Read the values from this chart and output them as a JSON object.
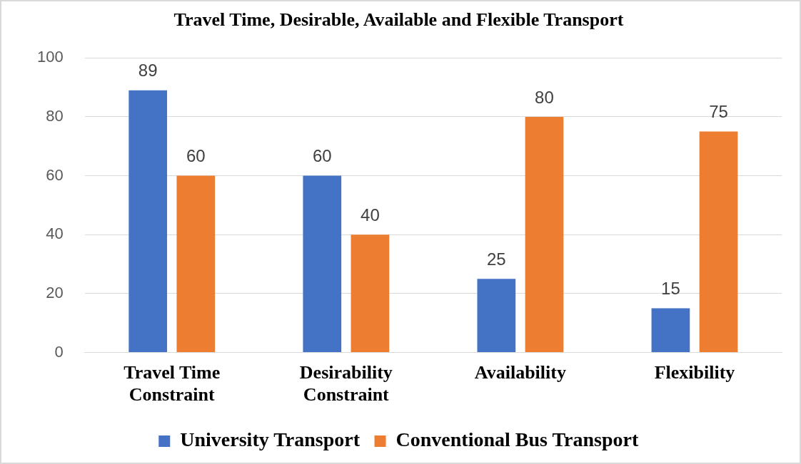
{
  "chart_data": {
    "type": "bar",
    "title": "Travel Time, Desirable, Available and Flexible Transport",
    "categories": [
      "Travel Time Constraint",
      "Desirability Constraint",
      "Availability",
      "Flexibility"
    ],
    "series": [
      {
        "name": "University Transport",
        "color": "#4472c4",
        "values": [
          89,
          60,
          25,
          15
        ]
      },
      {
        "name": "Conventional Bus Transport",
        "color": "#ed7d31",
        "values": [
          60,
          40,
          80,
          75
        ]
      }
    ],
    "ylim": [
      0,
      100
    ],
    "yticks": [
      0,
      20,
      40,
      60,
      80,
      100
    ],
    "grid": "y",
    "legend": "bottom",
    "data_labels": true
  }
}
